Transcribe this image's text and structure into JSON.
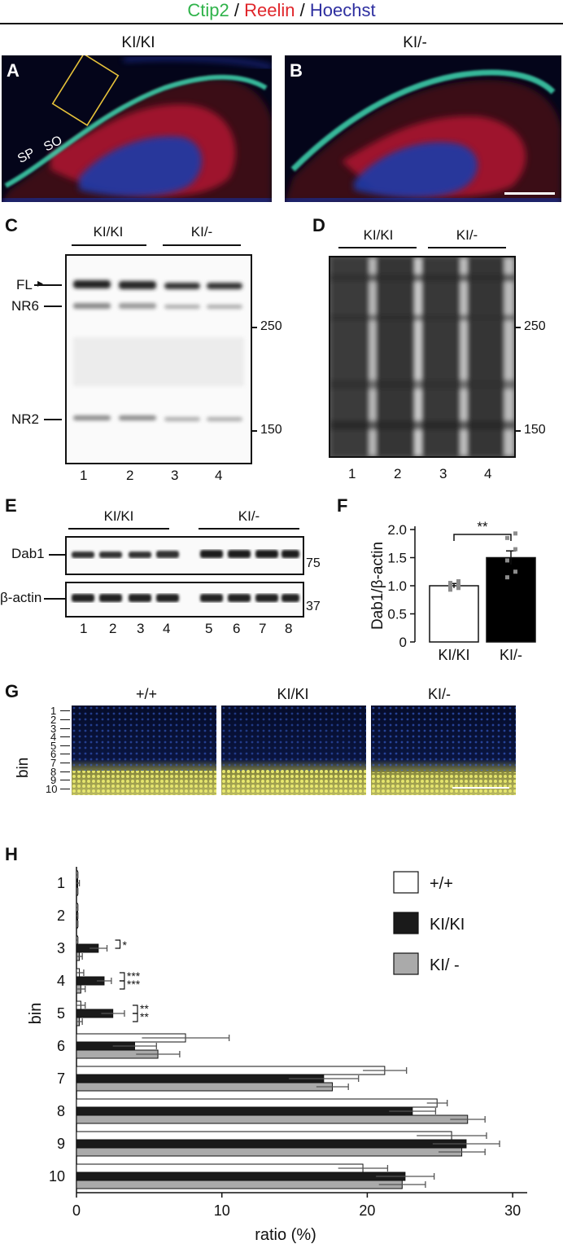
{
  "header": {
    "stain_ctip2": "Ctip2",
    "sep1": " / ",
    "stain_reelin": "Reelin",
    "sep2": " / ",
    "stain_hoechst": "Hoechst",
    "colors": {
      "ctip2": "#2fb34a",
      "reelin": "#e0262b",
      "hoechst": "#2e2fa0"
    }
  },
  "panelA": {
    "letter": "A",
    "title": "KI/KI",
    "label_so": "SO",
    "label_sp": "SP"
  },
  "panelB": {
    "letter": "B",
    "title": "KI/-"
  },
  "panelC": {
    "letter": "C",
    "group1": "KI/KI",
    "group2": "KI/-",
    "band_fl": "FL",
    "band_nr6": "NR6",
    "band_nr2": "NR2",
    "mw_250": "250",
    "mw_150": "150",
    "lanes": [
      "1",
      "2",
      "3",
      "4"
    ]
  },
  "panelD": {
    "letter": "D",
    "group1": "KI/KI",
    "group2": "KI/-",
    "mw_250": "250",
    "mw_150": "150",
    "lanes": [
      "1",
      "2",
      "3",
      "4"
    ]
  },
  "panelE": {
    "letter": "E",
    "group1": "KI/KI",
    "group2": "KI/-",
    "row_dab1": "Dab1",
    "row_actin": "β-actin",
    "mw_75": "75",
    "mw_37": "37",
    "lanes": [
      "1",
      "2",
      "3",
      "4",
      "5",
      "6",
      "7",
      "8"
    ]
  },
  "panelG": {
    "letter": "G",
    "ylabel": "bin",
    "titles": [
      "+/+",
      "KI/KI",
      "KI/-"
    ],
    "bins": [
      "1",
      "2",
      "3",
      "4",
      "5",
      "6",
      "7",
      "8",
      "9",
      "10"
    ]
  },
  "chart_data": [
    {
      "panel": "F",
      "type": "bar",
      "categories": [
        "KI/KI",
        "KI/-"
      ],
      "values": [
        1.0,
        1.5
      ],
      "errors": [
        0.04,
        0.12
      ],
      "points": [
        [
          0.93,
          0.96,
          1.0,
          1.02,
          1.05,
          1.08
        ],
        [
          1.15,
          1.25,
          1.45,
          1.65,
          1.85,
          1.93
        ]
      ],
      "colors": [
        "#ffffff",
        "#000000"
      ],
      "ylabel": "Dab1/β-actin",
      "ylim": [
        0,
        2.0
      ],
      "yticks": [
        "0",
        "0.5",
        "1.0",
        "1.5",
        "2.0"
      ],
      "significance": "**"
    },
    {
      "panel": "H",
      "type": "bar",
      "orientation": "horizontal",
      "categories": [
        "1",
        "2",
        "3",
        "4",
        "5",
        "6",
        "7",
        "8",
        "9",
        "10"
      ],
      "series": [
        {
          "name": "+/+",
          "color": "#ffffff",
          "values": [
            0,
            0,
            0,
            0.2,
            0.3,
            7.5,
            21.2,
            24.8,
            25.8,
            19.7
          ],
          "errors": [
            0.1,
            0.1,
            0.1,
            0.3,
            0.3,
            3.0,
            1.5,
            0.7,
            2.4,
            1.7
          ]
        },
        {
          "name": "KI/KI",
          "color": "#1a1a1a",
          "values": [
            0,
            0,
            1.5,
            1.9,
            2.5,
            4.0,
            17.0,
            23.1,
            26.8,
            22.6
          ],
          "errors": [
            0.2,
            0.1,
            0.6,
            0.5,
            0.8,
            1.5,
            2.4,
            1.6,
            2.3,
            2.0
          ]
        },
        {
          "name": "KI/ -",
          "color": "#aaaaaa",
          "values": [
            0,
            0,
            0.2,
            0.3,
            0.2,
            5.6,
            17.6,
            26.9,
            26.5,
            22.4
          ],
          "errors": [
            0.1,
            0.1,
            0.2,
            0.3,
            0.2,
            1.5,
            1.1,
            1.2,
            1.6,
            1.6
          ]
        }
      ],
      "significance": [
        {
          "bin": "3",
          "marks": [
            "*"
          ]
        },
        {
          "bin": "4",
          "marks": [
            "***",
            "***"
          ]
        },
        {
          "bin": "5",
          "marks": [
            "**",
            "**"
          ]
        }
      ],
      "xlabel": "ratio (%)",
      "ylabel": "bin",
      "xlim": [
        0,
        31
      ],
      "xticks": [
        "0",
        "10",
        "20",
        "30"
      ],
      "legend": "top-right",
      "letter": "H"
    }
  ]
}
